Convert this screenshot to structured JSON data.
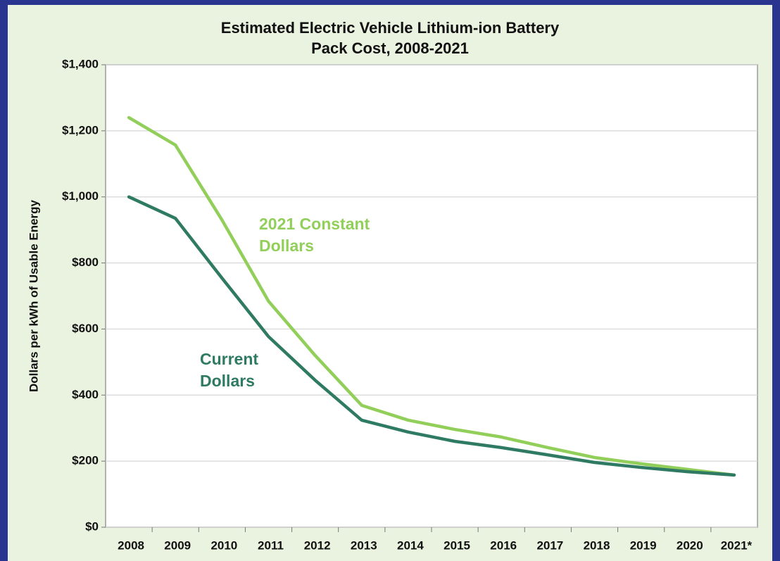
{
  "chart_data": {
    "type": "line",
    "title": "Estimated Electric Vehicle Lithium-ion Battery Pack Cost, 2008-2021",
    "y_label": "Dollars per kWh of Usable Energy",
    "categories": [
      "2008",
      "2009",
      "2010",
      "2011",
      "2012",
      "2013",
      "2014",
      "2015",
      "2016",
      "2017",
      "2018",
      "2019",
      "2020",
      "2021*"
    ],
    "series": [
      {
        "name": "2021 Constant Dollars",
        "color": "#92cf5a",
        "values": [
          1240,
          1157,
          930,
          684,
          520,
          369,
          324,
          296,
          273,
          241,
          211,
          192,
          175,
          158
        ]
      },
      {
        "name": "Current Dollars",
        "color": "#2f7a62",
        "values": [
          1000,
          935,
          754,
          577,
          445,
          324,
          288,
          260,
          241,
          219,
          196,
          181,
          168,
          158
        ]
      }
    ],
    "ylim": [
      0,
      1400
    ],
    "yticks": [
      {
        "value": 0,
        "label": "$0"
      },
      {
        "value": 200,
        "label": "$200"
      },
      {
        "value": 400,
        "label": "$400"
      },
      {
        "value": 600,
        "label": "$600"
      },
      {
        "value": 800,
        "label": "$800"
      },
      {
        "value": 1000,
        "label": "$1,000"
      },
      {
        "value": 1200,
        "label": "$1,200"
      },
      {
        "value": 1400,
        "label": "$1,400"
      }
    ],
    "grid": true
  }
}
